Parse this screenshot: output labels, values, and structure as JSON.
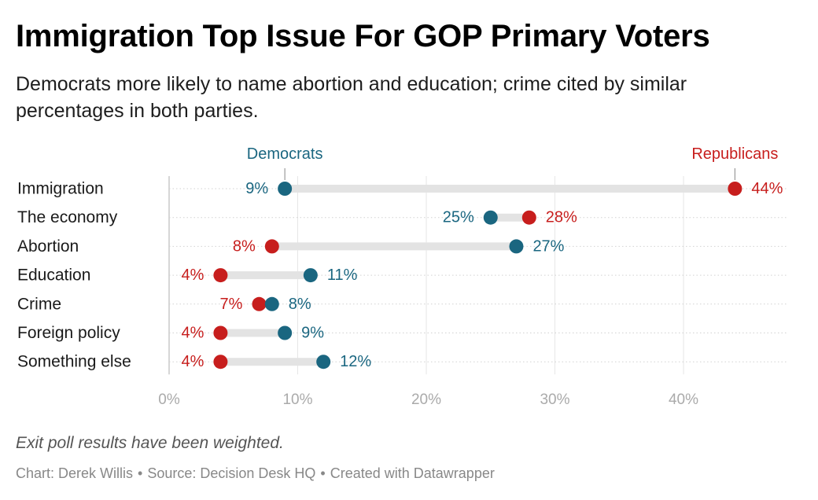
{
  "title": "Immigration Top Issue For GOP Primary Voters",
  "subtitle": "Democrats more likely to name abortion and education; crime cited by similar percentages in both parties.",
  "note": "Exit poll results have been weighted.",
  "footer": {
    "chart_credit": "Chart: Derek Willis",
    "source": "Source: Decision Desk HQ",
    "tool": "Created with Datawrapper",
    "separator": "•"
  },
  "colors": {
    "democrats": "#1a6680",
    "republicans": "#c71e1d",
    "range_bar": "#e3e3e3",
    "axis_text": "#aaaaaa"
  },
  "chart_data": {
    "type": "range-dot",
    "categories": [
      "Immigration",
      "The economy",
      "Abortion",
      "Education",
      "Crime",
      "Foreign policy",
      "Something else"
    ],
    "series": [
      {
        "name": "Democrats",
        "values": [
          9,
          25,
          27,
          11,
          8,
          9,
          12
        ]
      },
      {
        "name": "Republicans",
        "values": [
          44,
          28,
          8,
          4,
          7,
          4,
          4
        ]
      }
    ],
    "x_ticks": [
      "0%",
      "10%",
      "20%",
      "30%",
      "40%"
    ],
    "x_tick_values": [
      0,
      10,
      20,
      30,
      40
    ],
    "xlim": [
      0,
      48
    ],
    "value_suffix": "%",
    "legend_placement": "inline-top",
    "grid": true
  }
}
